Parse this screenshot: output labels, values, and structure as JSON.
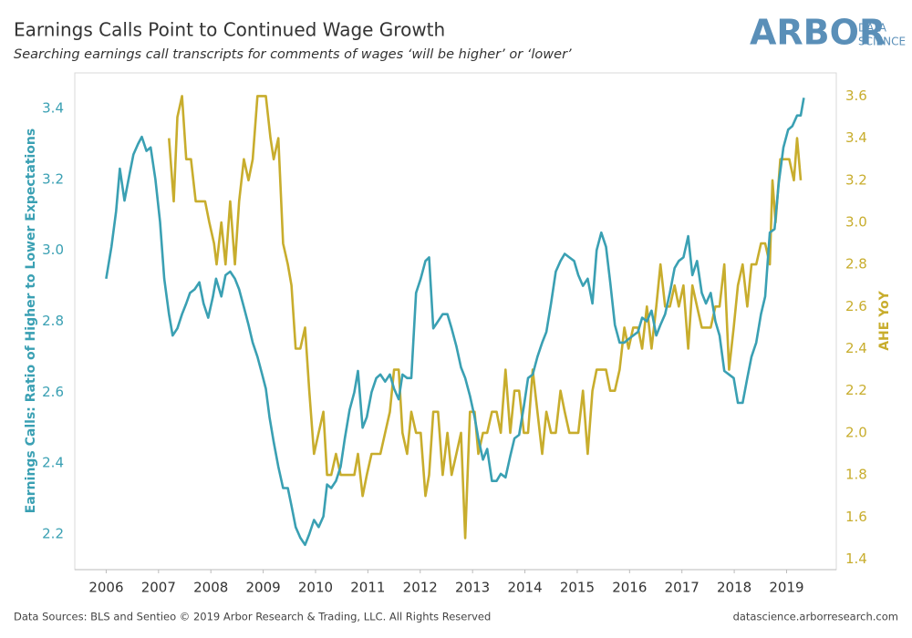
{
  "header": {
    "logo": "ARBOR",
    "logo_sub1": "DATA",
    "logo_sub2": "SCIENCE"
  },
  "footer": {
    "left": "Data Sources: BLS and Sentieo © 2019 Arbor Research & Trading, LLC. All Rights Reserved",
    "right": "datascience.arborresearch.com"
  },
  "chart_data": {
    "type": "line",
    "title": "Earnings Calls Point to Continued Wage Growth",
    "subtitle": "Searching earnings call transcripts for comments of wages ‘will be higher’ or ‘lower’",
    "ylabel": "Earnings Calls: Ratio of Higher to Lower Expectations",
    "y2label": "AHE YoY",
    "xlim": [
      2005.4,
      2019.95
    ],
    "xticks": [
      2006,
      2007,
      2008,
      2009,
      2010,
      2011,
      2012,
      2013,
      2014,
      2015,
      2016,
      2017,
      2018,
      2019
    ],
    "ylim": [
      2.1,
      3.5
    ],
    "yticks": [
      2.2,
      2.4,
      2.6,
      2.8,
      {
        "value": 3,
        "label": "3.0"
      },
      3.2,
      3.4
    ],
    "y2lim": [
      1.35,
      3.71
    ],
    "y2ticks": [
      1.4,
      1.6,
      1.8,
      {
        "value": 2,
        "label": "2.0"
      },
      2.2,
      2.4,
      2.6,
      2.8,
      {
        "value": 3,
        "label": "3.0"
      },
      3.2,
      3.4,
      3.6
    ],
    "grid": false,
    "series": [
      {
        "name": "Earnings Calls: Ratio of Higher to Lower Expectations",
        "color": "#3aa0b3",
        "axis": "y",
        "x": [
          2006.0,
          2006.1,
          2006.19,
          2006.26,
          2006.35,
          2006.44,
          2006.52,
          2006.61,
          2006.68,
          2006.77,
          2006.85,
          2006.94,
          2007.03,
          2007.11,
          2007.2,
          2007.27,
          2007.36,
          2007.45,
          2007.53,
          2007.6,
          2007.69,
          2007.78,
          2007.86,
          2007.95,
          2008.04,
          2008.1,
          2008.2,
          2008.28,
          2008.37,
          2008.46,
          2008.54,
          2008.63,
          2008.72,
          2008.8,
          2008.89,
          2008.98,
          2009.05,
          2009.12,
          2009.2,
          2009.29,
          2009.38,
          2009.47,
          2009.54,
          2009.62,
          2009.71,
          2009.8,
          2009.88,
          2009.97,
          2010.06,
          2010.15,
          2010.22,
          2010.3,
          2010.39,
          2010.48,
          2010.56,
          2010.65,
          2010.74,
          2010.81,
          2010.9,
          2010.98,
          2011.07,
          2011.16,
          2011.24,
          2011.33,
          2011.42,
          2011.5,
          2011.59,
          2011.66,
          2011.75,
          2011.83,
          2011.92,
          2012.01,
          2012.1,
          2012.17,
          2012.25,
          2012.34,
          2012.43,
          2012.52,
          2012.6,
          2012.69,
          2012.78,
          2012.86,
          2012.95,
          2013.04,
          2013.11,
          2013.2,
          2013.28,
          2013.37,
          2013.46,
          2013.54,
          2013.63,
          2013.72,
          2013.8,
          2013.89,
          2013.98,
          2014.06,
          2014.15,
          2014.24,
          2014.33,
          2014.41,
          2014.5,
          2014.59,
          2014.68,
          2014.76,
          2014.85,
          2014.94,
          2015.02,
          2015.11,
          2015.2,
          2015.29,
          2015.37,
          2015.46,
          2015.55,
          2015.63,
          2015.72,
          2015.81,
          2015.9,
          2015.98,
          2016.07,
          2016.16,
          2016.24,
          2016.33,
          2016.42,
          2016.51,
          2016.59,
          2016.68,
          2016.77,
          2016.86,
          2016.94,
          2017.03,
          2017.12,
          2017.2,
          2017.29,
          2017.38,
          2017.46,
          2017.55,
          2017.64,
          2017.72,
          2017.81,
          2017.9,
          2017.99,
          2018.07,
          2018.16,
          2018.25,
          2018.33,
          2018.42,
          2018.51,
          2018.59,
          2018.68,
          2018.77,
          2018.85,
          2018.94,
          2019.03,
          2019.11,
          2019.2,
          2019.27,
          2019.33
        ],
        "values": [
          2.92,
          3.01,
          3.11,
          3.23,
          3.14,
          3.21,
          3.27,
          3.3,
          3.32,
          3.28,
          3.29,
          3.2,
          3.08,
          2.92,
          2.82,
          2.76,
          2.78,
          2.82,
          2.85,
          2.88,
          2.89,
          2.91,
          2.85,
          2.81,
          2.87,
          2.92,
          2.87,
          2.93,
          2.94,
          2.92,
          2.89,
          2.84,
          2.79,
          2.74,
          2.7,
          2.65,
          2.61,
          2.53,
          2.46,
          2.39,
          2.33,
          2.33,
          2.28,
          2.22,
          2.19,
          2.17,
          2.2,
          2.24,
          2.22,
          2.25,
          2.34,
          2.33,
          2.35,
          2.39,
          2.47,
          2.55,
          2.6,
          2.66,
          2.5,
          2.53,
          2.6,
          2.64,
          2.65,
          2.63,
          2.65,
          2.61,
          2.58,
          2.65,
          2.64,
          2.64,
          2.88,
          2.92,
          2.97,
          2.98,
          2.78,
          2.8,
          2.82,
          2.82,
          2.78,
          2.73,
          2.67,
          2.64,
          2.59,
          2.53,
          2.47,
          2.41,
          2.44,
          2.35,
          2.35,
          2.37,
          2.36,
          2.42,
          2.47,
          2.48,
          2.56,
          2.64,
          2.65,
          2.7,
          2.74,
          2.77,
          2.85,
          2.94,
          2.97,
          2.99,
          2.98,
          2.97,
          2.93,
          2.9,
          2.92,
          2.85,
          3.0,
          3.05,
          3.01,
          2.91,
          2.79,
          2.74,
          2.74,
          2.75,
          2.76,
          2.77,
          2.81,
          2.8,
          2.83,
          2.76,
          2.79,
          2.82,
          2.88,
          2.95,
          2.97,
          2.98,
          3.04,
          2.93,
          2.97,
          2.88,
          2.85,
          2.88,
          2.8,
          2.76,
          2.66,
          2.65,
          2.64,
          2.57,
          2.57,
          2.64,
          2.7,
          2.74,
          2.82,
          2.87,
          3.05,
          3.06,
          3.19,
          3.29,
          3.34,
          3.35,
          3.38,
          3.38,
          3.43
        ]
      },
      {
        "name": "AHE YoY",
        "color": "#c8ad2d",
        "axis": "y2",
        "x": [
          2007.2,
          2007.29,
          2007.36,
          2007.45,
          2007.53,
          2007.62,
          2007.71,
          2007.8,
          2007.89,
          2007.97,
          2008.06,
          2008.11,
          2008.2,
          2008.28,
          2008.37,
          2008.46,
          2008.54,
          2008.63,
          2008.72,
          2008.8,
          2008.89,
          2008.98,
          2009.05,
          2009.14,
          2009.2,
          2009.29,
          2009.38,
          2009.47,
          2009.54,
          2009.62,
          2009.71,
          2009.8,
          2009.88,
          2009.97,
          2010.06,
          2010.15,
          2010.22,
          2010.3,
          2010.39,
          2010.48,
          2010.56,
          2010.65,
          2010.74,
          2010.81,
          2010.9,
          2010.98,
          2011.07,
          2011.16,
          2011.24,
          2011.33,
          2011.42,
          2011.5,
          2011.59,
          2011.66,
          2011.75,
          2011.83,
          2011.92,
          2012.01,
          2012.1,
          2012.17,
          2012.25,
          2012.34,
          2012.43,
          2012.52,
          2012.6,
          2012.69,
          2012.78,
          2012.86,
          2012.95,
          2013.04,
          2013.11,
          2013.2,
          2013.28,
          2013.37,
          2013.46,
          2013.54,
          2013.63,
          2013.72,
          2013.8,
          2013.89,
          2013.98,
          2014.06,
          2014.15,
          2014.24,
          2014.33,
          2014.41,
          2014.5,
          2014.59,
          2014.68,
          2014.76,
          2014.85,
          2014.94,
          2015.02,
          2015.11,
          2015.2,
          2015.29,
          2015.37,
          2015.46,
          2015.55,
          2015.63,
          2015.72,
          2015.81,
          2015.9,
          2015.98,
          2016.07,
          2016.16,
          2016.24,
          2016.33,
          2016.42,
          2016.51,
          2016.59,
          2016.68,
          2016.77,
          2016.86,
          2016.94,
          2017.03,
          2017.12,
          2017.2,
          2017.29,
          2017.38,
          2017.46,
          2017.55,
          2017.64,
          2017.72,
          2017.81,
          2017.9,
          2017.99,
          2018.07,
          2018.16,
          2018.25,
          2018.33,
          2018.42,
          2018.51,
          2018.59,
          2018.68,
          2018.73,
          2018.79,
          2018.88,
          2018.96,
          2019.05,
          2019.14,
          2019.2,
          2019.27
        ],
        "values": [
          3.4,
          3.1,
          3.5,
          3.6,
          3.3,
          3.3,
          3.1,
          3.1,
          3.1,
          3.0,
          2.9,
          2.8,
          3.0,
          2.8,
          3.1,
          2.8,
          3.1,
          3.3,
          3.2,
          3.3,
          3.6,
          3.6,
          3.6,
          3.4,
          3.3,
          3.4,
          2.9,
          2.8,
          2.7,
          2.4,
          2.4,
          2.5,
          2.2,
          1.9,
          2.0,
          2.1,
          1.8,
          1.8,
          1.9,
          1.8,
          1.8,
          1.8,
          1.8,
          1.9,
          1.7,
          1.8,
          1.9,
          1.9,
          1.9,
          2.0,
          2.1,
          2.3,
          2.3,
          2.0,
          1.9,
          2.1,
          2.0,
          2.0,
          1.7,
          1.8,
          2.1,
          2.1,
          1.8,
          2.0,
          1.8,
          1.9,
          2.0,
          1.5,
          2.1,
          2.1,
          1.9,
          2.0,
          2.0,
          2.1,
          2.1,
          2.0,
          2.3,
          2.0,
          2.2,
          2.2,
          2.0,
          2.0,
          2.3,
          2.1,
          1.9,
          2.1,
          2.0,
          2.0,
          2.2,
          2.1,
          2.0,
          2.0,
          2.0,
          2.2,
          1.9,
          2.2,
          2.3,
          2.3,
          2.3,
          2.2,
          2.2,
          2.3,
          2.5,
          2.4,
          2.5,
          2.5,
          2.4,
          2.6,
          2.4,
          2.6,
          2.8,
          2.6,
          2.6,
          2.7,
          2.6,
          2.7,
          2.4,
          2.7,
          2.6,
          2.5,
          2.5,
          2.5,
          2.6,
          2.6,
          2.8,
          2.3,
          2.5,
          2.7,
          2.8,
          2.6,
          2.8,
          2.8,
          2.9,
          2.9,
          2.8,
          3.2,
          3.0,
          3.3,
          3.3,
          3.3,
          3.2,
          3.4,
          3.2
        ]
      }
    ]
  }
}
